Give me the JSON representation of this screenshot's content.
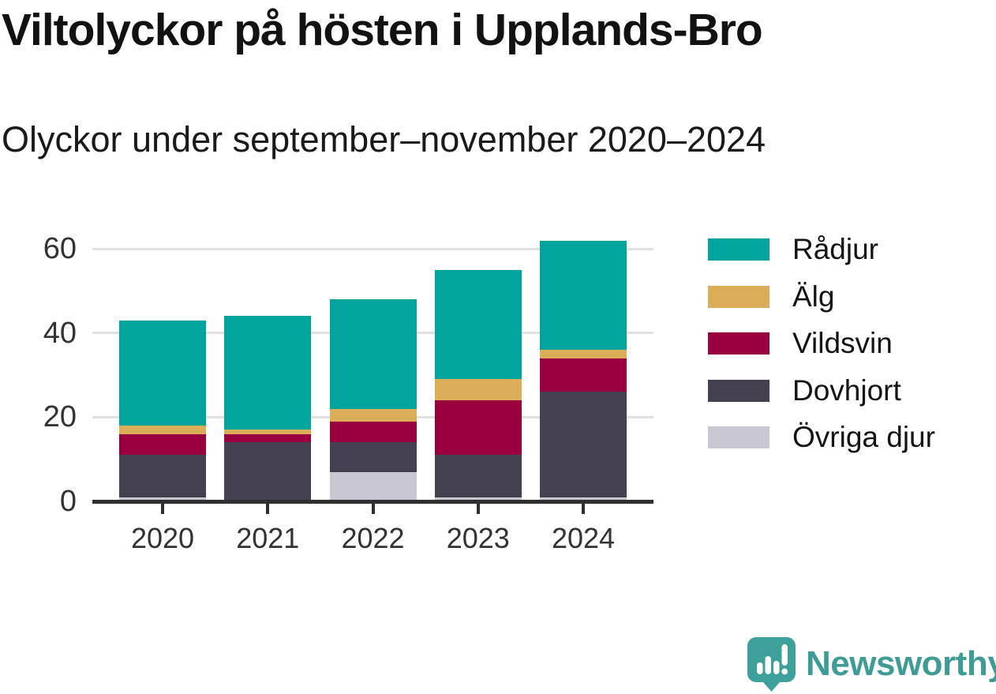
{
  "header": {
    "title": "Viltolyckor på hösten i Upplands-Bro",
    "subtitle": "Olyckor under september–november 2020–2024"
  },
  "chart_data": {
    "type": "bar",
    "stacked": true,
    "title": "Viltolyckor på hösten i Upplands-Bro",
    "subtitle": "Olyckor under september–november 2020–2024",
    "categories": [
      "2020",
      "2021",
      "2022",
      "2023",
      "2024"
    ],
    "series": [
      {
        "name": "Rådjur",
        "color": "#00A49C",
        "values": [
          25,
          27,
          26,
          26,
          26
        ]
      },
      {
        "name": "Älg",
        "color": "#DBAD58",
        "values": [
          2,
          1,
          3,
          5,
          2
        ]
      },
      {
        "name": "Vildsvin",
        "color": "#98003E",
        "values": [
          5,
          2,
          5,
          13,
          8
        ]
      },
      {
        "name": "Dovhjort",
        "color": "#454151",
        "values": [
          10,
          14,
          7,
          10,
          25
        ]
      },
      {
        "name": "Övriga djur",
        "color": "#C9C8D2",
        "values": [
          1,
          0,
          7,
          1,
          1
        ]
      }
    ],
    "stack_order_bottom_to_top": [
      "Övriga djur",
      "Dovhjort",
      "Vildsvin",
      "Älg",
      "Rådjur"
    ],
    "totals": [
      43,
      44,
      48,
      55,
      62
    ],
    "xlabel": "",
    "ylabel": "",
    "yticks": [
      0,
      20,
      40,
      60
    ],
    "ylim": [
      0,
      64
    ],
    "grid": "horizontal",
    "legend_position": "right",
    "axis_color": "#2F2F2F",
    "gridline_color": "#E0E0E0",
    "tick_label_color": "#333333"
  },
  "footer": {
    "brand": "Newsworthy",
    "brand_color": "#3E9B95",
    "icon": "bar-chart-speech-bubble",
    "icon_color": "#3EA09A"
  }
}
